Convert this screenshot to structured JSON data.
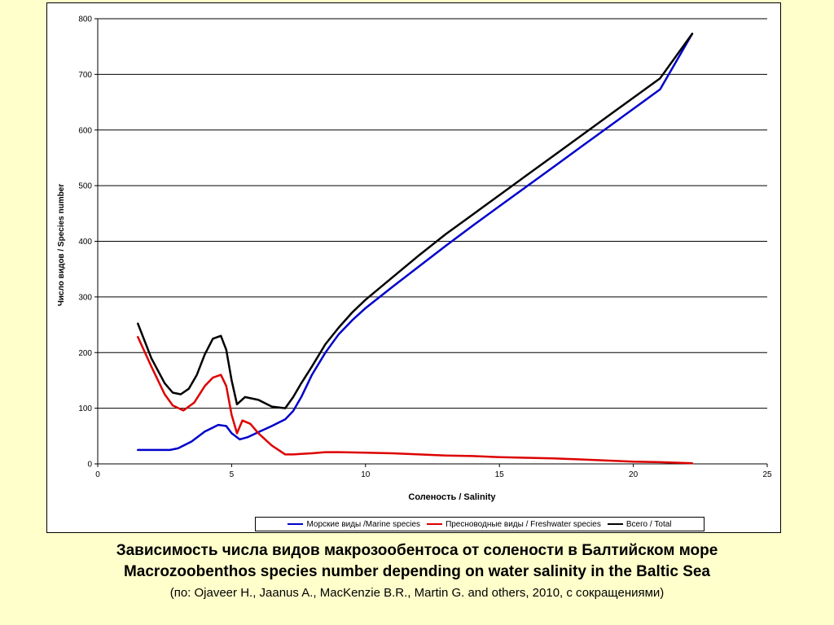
{
  "caption": {
    "line1": "Зависимость числа видов макрозообентоса от солености в Балтийском море",
    "line2": "Macrozoobenthos species number depending on water salinity in the Baltic Sea",
    "line3": "(по: Ojaveer H., Jaanus A., MacKenzie B.R., Martin G. and others, 2010, с сокращениями)"
  },
  "chart_data": {
    "type": "line",
    "title": "",
    "xlabel": "Соленость / Salinity",
    "ylabel": "Число видов / Species number",
    "xlim": [
      0,
      25
    ],
    "ylim": [
      0,
      800
    ],
    "xticks": [
      0,
      5,
      10,
      15,
      20,
      25
    ],
    "yticks": [
      0,
      100,
      200,
      300,
      400,
      500,
      600,
      700,
      800
    ],
    "grid": "horizontal",
    "legend": "bottom",
    "series": [
      {
        "name": "Морские виды /Marine species",
        "color": "#0000cc",
        "x": [
          1.5,
          2.7,
          3.0,
          3.5,
          4.0,
          4.5,
          4.8,
          5.0,
          5.3,
          5.6,
          6.0,
          6.5,
          7.0,
          7.3,
          7.6,
          8.0,
          8.5,
          9.0,
          9.5,
          10.0,
          11.0,
          12.0,
          13.0,
          14.0,
          15.0,
          16.0,
          17.0,
          18.0,
          19.0,
          20.0,
          21.0,
          22.2
        ],
        "y": [
          25,
          25,
          28,
          40,
          58,
          70,
          68,
          55,
          44,
          48,
          57,
          68,
          80,
          95,
          120,
          160,
          200,
          233,
          258,
          280,
          318,
          355,
          392,
          428,
          463,
          498,
          533,
          568,
          603,
          638,
          673,
          773
        ]
      },
      {
        "name": "Пресноводные виды / Freshwater species",
        "color": "#dd0000",
        "x": [
          1.5,
          2.0,
          2.5,
          2.8,
          3.2,
          3.6,
          4.0,
          4.3,
          4.6,
          4.8,
          5.0,
          5.2,
          5.4,
          5.7,
          6.0,
          6.5,
          7.0,
          7.3,
          7.6,
          8.0,
          8.5,
          9.0,
          10.0,
          11.0,
          12.0,
          13.0,
          14.0,
          15.0,
          16.0,
          17.0,
          18.0,
          19.0,
          20.0,
          21.0,
          22.2
        ],
        "y": [
          228,
          175,
          125,
          105,
          96,
          110,
          140,
          155,
          160,
          140,
          88,
          55,
          78,
          72,
          55,
          33,
          17,
          17,
          18,
          19,
          21,
          21,
          20,
          19,
          17,
          15,
          14,
          12,
          11,
          10,
          8,
          6,
          4,
          3,
          1
        ]
      },
      {
        "name": "Всего / Total",
        "color": "#000000",
        "x": [
          1.5,
          2.0,
          2.5,
          2.8,
          3.1,
          3.4,
          3.7,
          4.0,
          4.3,
          4.6,
          4.8,
          5.0,
          5.2,
          5.5,
          6.0,
          6.5,
          7.0,
          7.3,
          7.6,
          8.0,
          8.5,
          9.0,
          9.5,
          10.0,
          11.0,
          12.0,
          13.0,
          14.0,
          15.0,
          16.0,
          17.0,
          18.0,
          19.0,
          20.0,
          21.0,
          22.2
        ],
        "y": [
          252,
          190,
          145,
          128,
          125,
          135,
          160,
          197,
          225,
          230,
          205,
          150,
          107,
          120,
          115,
          103,
          100,
          120,
          145,
          175,
          215,
          245,
          272,
          295,
          335,
          375,
          413,
          448,
          483,
          518,
          553,
          588,
          623,
          658,
          693,
          773
        ]
      }
    ]
  }
}
